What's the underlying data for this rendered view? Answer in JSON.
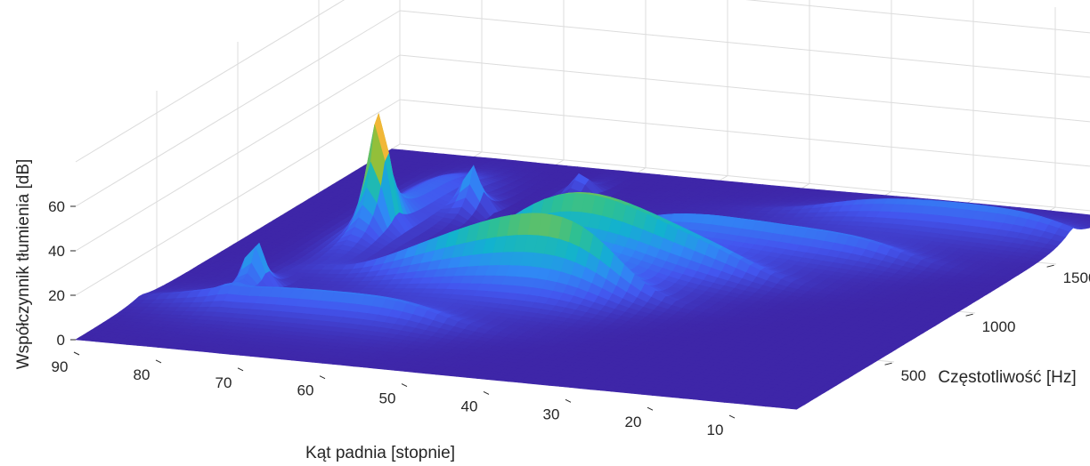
{
  "chart_data": {
    "type": "surface",
    "title": "",
    "xlabel": "Kąt padnia [stopnie]",
    "ylabel": "Częstotliwość [Hz]",
    "zlabel": "Współczynnik tłumienia [dB]",
    "x_ticks": [
      10,
      20,
      30,
      40,
      50,
      60,
      70,
      80,
      90
    ],
    "y_ticks": [
      500,
      1000,
      1500
    ],
    "z_ticks": [
      0,
      20,
      40,
      60
    ],
    "xlim": [
      0,
      95
    ],
    "ylim": [
      0,
      2000
    ],
    "zlim": [
      0,
      90
    ],
    "grid": true,
    "colormap": [
      "#3e26a8",
      "#4356ef",
      "#2f8af5",
      "#12b2cf",
      "#2ec093",
      "#9bbf33",
      "#f1b538",
      "#f9fb15"
    ],
    "ridges": [
      {
        "frequency": 400,
        "peak_angle": 25,
        "peak_db": 44
      },
      {
        "frequency": 780,
        "peak_angle": 45,
        "peak_db": 38
      },
      {
        "frequency": 1060,
        "peak_angle": 55,
        "peak_db": 44
      },
      {
        "frequency": 1350,
        "peak_angle": 63,
        "peak_db": 38
      },
      {
        "frequency": 1700,
        "peak_angle": 74,
        "peak_db": 30
      }
    ],
    "peaks": [
      {
        "angle": 79,
        "frequency": 550,
        "db": 26
      },
      {
        "angle": 76,
        "frequency": 1160,
        "db": 57
      },
      {
        "angle": 70,
        "frequency": 1440,
        "db": 22
      },
      {
        "angle": 62,
        "frequency": 1700,
        "db": 11
      }
    ]
  }
}
